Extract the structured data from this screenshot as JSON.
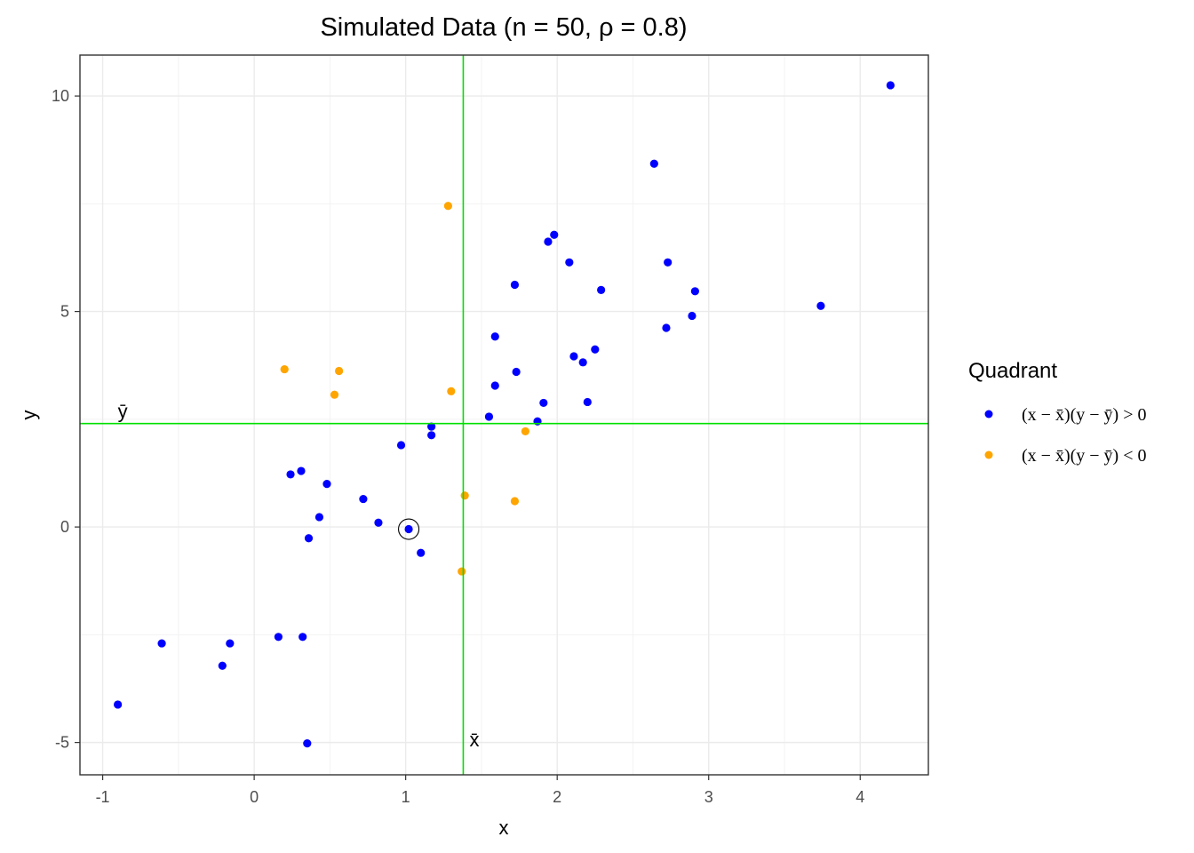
{
  "chart_data": {
    "type": "scatter",
    "title": "Simulated Data (n = 50, ρ = 0.8)",
    "xlabel": "x",
    "ylabel": "y",
    "xlim": [
      -1.15,
      4.45
    ],
    "ylim": [
      -5.75,
      10.95
    ],
    "x_ticks": [
      -1,
      0,
      1,
      2,
      3,
      4
    ],
    "y_ticks": [
      -5,
      0,
      5,
      10
    ],
    "grid": true,
    "x_mean": 1.38,
    "y_mean": 2.4,
    "x_mean_label": "x̄",
    "y_mean_label": "ȳ",
    "highlighted_point": {
      "x": 1.02,
      "y": -0.05
    },
    "legend": {
      "title": "Quadrant",
      "position": "right",
      "entries": [
        {
          "label": "(x − x̄)(y − ȳ) > 0",
          "color": "#0000ff"
        },
        {
          "label": "(x − x̄)(y − ȳ) < 0",
          "color": "#ffa500"
        }
      ]
    },
    "series": [
      {
        "color": "#0000ff",
        "points": [
          [
            4.2,
            10.25
          ],
          [
            2.64,
            8.43
          ],
          [
            1.98,
            6.78
          ],
          [
            1.94,
            6.62
          ],
          [
            2.08,
            6.14
          ],
          [
            2.73,
            6.14
          ],
          [
            1.72,
            5.62
          ],
          [
            2.29,
            5.5
          ],
          [
            2.91,
            5.47
          ],
          [
            3.74,
            5.13
          ],
          [
            2.89,
            4.9
          ],
          [
            2.72,
            4.62
          ],
          [
            1.59,
            4.42
          ],
          [
            2.25,
            4.12
          ],
          [
            2.11,
            3.96
          ],
          [
            2.17,
            3.82
          ],
          [
            1.73,
            3.6
          ],
          [
            1.59,
            3.28
          ],
          [
            1.91,
            2.88
          ],
          [
            2.2,
            2.9
          ],
          [
            1.55,
            2.56
          ],
          [
            1.87,
            2.45
          ],
          [
            1.17,
            2.33
          ],
          [
            1.17,
            2.13
          ],
          [
            0.97,
            1.9
          ],
          [
            0.31,
            1.3
          ],
          [
            0.24,
            1.22
          ],
          [
            0.48,
            1.0
          ],
          [
            0.72,
            0.65
          ],
          [
            0.43,
            0.23
          ],
          [
            0.82,
            0.1
          ],
          [
            1.02,
            -0.05
          ],
          [
            0.36,
            -0.26
          ],
          [
            1.1,
            -0.6
          ],
          [
            0.16,
            -2.55
          ],
          [
            0.32,
            -2.55
          ],
          [
            -0.61,
            -2.7
          ],
          [
            -0.16,
            -2.7
          ],
          [
            -0.21,
            -3.22
          ],
          [
            -0.9,
            -4.12
          ],
          [
            0.35,
            -5.02
          ]
        ]
      },
      {
        "color": "#ffa500",
        "points": [
          [
            1.28,
            7.45
          ],
          [
            0.2,
            3.66
          ],
          [
            0.56,
            3.62
          ],
          [
            0.53,
            3.07
          ],
          [
            1.3,
            3.15
          ],
          [
            1.79,
            2.22
          ],
          [
            1.39,
            0.73
          ],
          [
            1.72,
            0.6
          ],
          [
            1.37,
            -1.03
          ]
        ]
      }
    ]
  }
}
